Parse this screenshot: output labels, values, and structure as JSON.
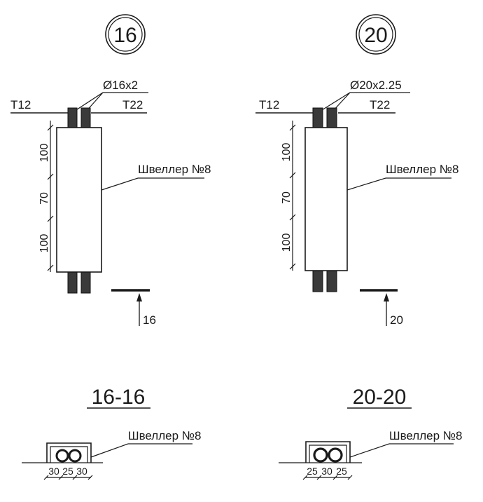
{
  "nodes": {
    "left": {
      "id": "16",
      "pipe_label": "Ø16x2",
      "left_pipe": "T12",
      "right_pipe": "T22",
      "dims": [
        "100",
        "70",
        "100"
      ],
      "channel_label": "Швеллер №8",
      "section_mark": "16",
      "section_title": "16-16",
      "section_channel_label": "Швеллер №8",
      "section_dims": [
        "30",
        "25",
        "30"
      ]
    },
    "right": {
      "id": "20",
      "pipe_label": "Ø20x2.25",
      "left_pipe": "T12",
      "right_pipe": "T22",
      "dims": [
        "100",
        "70",
        "100"
      ],
      "channel_label": "Швеллер №8",
      "section_mark": "20",
      "section_title": "20-20",
      "section_channel_label": "Швеллер №8",
      "section_dims": [
        "25",
        "30",
        "25"
      ]
    }
  }
}
